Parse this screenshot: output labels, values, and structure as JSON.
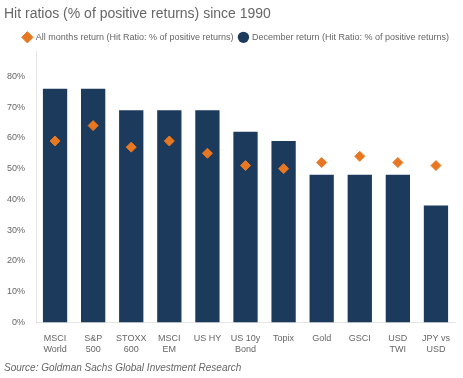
{
  "chart_data": {
    "type": "bar",
    "title": "Hit ratios (% of positive returns) since 1990",
    "annotations": [
      "Source: Goldman Sachs Global Investment Research"
    ],
    "categories": [
      "MSCI\nWorld",
      "S&P\n500",
      "STOXX\n600",
      "MSCI\nEM",
      "US HY",
      "US 10y\nBond",
      "Topix",
      "Gold",
      "GSCI",
      "USD\nTWI",
      "JPY vs\nUSD"
    ],
    "series": [
      {
        "name": "December return (Hit Ratio: % of positive returns)",
        "type": "bar",
        "color": "#1b3a5c",
        "values": [
          76,
          76,
          69,
          69,
          69,
          62,
          59,
          48,
          48,
          48,
          38
        ]
      },
      {
        "name": "All months return (Hit Ratio: % of positive returns)",
        "type": "scatter",
        "marker": "diamond",
        "color": "#e87722",
        "values": [
          59,
          64,
          57,
          59,
          55,
          51,
          50,
          52,
          54,
          52,
          51
        ]
      }
    ],
    "ylim": [
      0,
      88
    ],
    "yticks": [
      {
        "value": 0,
        "label": "0%"
      },
      {
        "value": 10,
        "label": "10%"
      },
      {
        "value": 20,
        "label": "20%"
      },
      {
        "value": 30,
        "label": "30%"
      },
      {
        "value": 40,
        "label": "40%"
      },
      {
        "value": 50,
        "label": "50%"
      },
      {
        "value": 60,
        "label": "60%"
      },
      {
        "value": 70,
        "label": "70%"
      },
      {
        "value": 80,
        "label": "80%"
      }
    ],
    "grid": false,
    "legend": "upper right"
  }
}
